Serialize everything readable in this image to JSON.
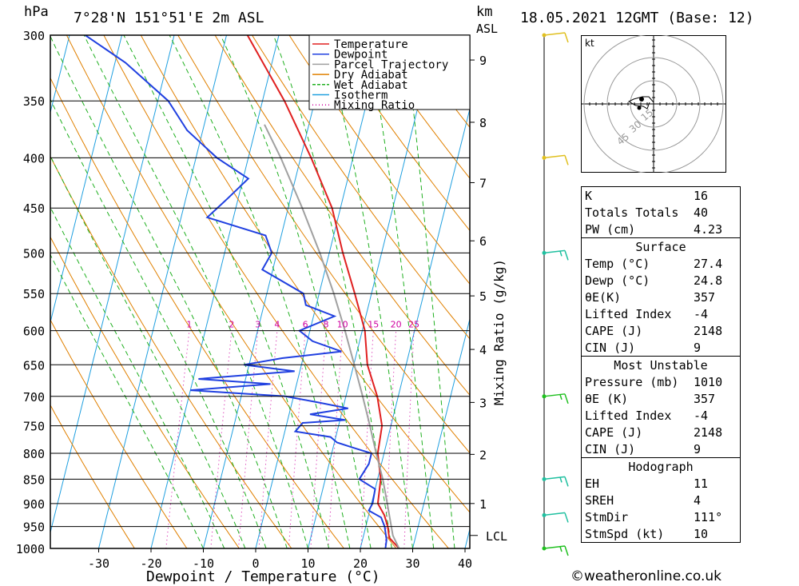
{
  "header": {
    "hpa_label": "hPa",
    "location": "7°28'N  151°51'E  2m  ASL",
    "km_label": "km",
    "asl_label": "ASL",
    "datetime": "18.05.2021  12GMT  (Base: 12)"
  },
  "chart_data": {
    "type": "line",
    "subtype": "skew-T log-P diagram",
    "xlabel": "Dewpoint / Temperature (°C)",
    "ylabel_left": "hPa",
    "ylabel_right": "Mixing Ratio (g/kg)",
    "x_ticks": [
      -30,
      -20,
      -10,
      0,
      10,
      20,
      30,
      40
    ],
    "pressure_levels": [
      300,
      350,
      400,
      450,
      500,
      550,
      600,
      650,
      700,
      750,
      800,
      850,
      900,
      950,
      1000
    ],
    "height_km_ticks": [
      {
        "label": "1",
        "p": 900
      },
      {
        "label": "2",
        "p": 802
      },
      {
        "label": "3",
        "p": 710
      },
      {
        "label": "4",
        "p": 627
      },
      {
        "label": "5",
        "p": 553
      },
      {
        "label": "6",
        "p": 486
      },
      {
        "label": "7",
        "p": 424
      },
      {
        "label": "8",
        "p": 368
      },
      {
        "label": "9",
        "p": 318
      }
    ],
    "lcl": {
      "label": "LCL",
      "p": 970
    },
    "mixing_ratio_labels": [
      "1",
      "2",
      "3",
      "4",
      "6",
      "8",
      "10",
      "15",
      "20",
      "25"
    ],
    "mixing_ratio_values": [
      1,
      2,
      3,
      4,
      6,
      8,
      10,
      15,
      20,
      25
    ],
    "legend": [
      {
        "name": "Temperature",
        "color": "#e02020",
        "dash": "solid"
      },
      {
        "name": "Dewpoint",
        "color": "#2040e0",
        "dash": "solid"
      },
      {
        "name": "Parcel Trajectory",
        "color": "#a0a0a0",
        "dash": "solid"
      },
      {
        "name": "Dry Adiabat",
        "color": "#e08000",
        "dash": "solid"
      },
      {
        "name": "Wet Adiabat",
        "color": "#20b020",
        "dash": "dashed"
      },
      {
        "name": "Isotherm",
        "color": "#20a0e0",
        "dash": "solid"
      },
      {
        "name": "Mixing Ratio",
        "color": "#d000a0",
        "dash": "dotted"
      }
    ],
    "series": [
      {
        "name": "Temperature",
        "points": [
          [
            1000,
            27.4
          ],
          [
            975,
            25
          ],
          [
            950,
            24.2
          ],
          [
            925,
            23
          ],
          [
            900,
            21.2
          ],
          [
            850,
            20.6
          ],
          [
            800,
            18.8
          ],
          [
            750,
            18.3
          ],
          [
            700,
            16
          ],
          [
            650,
            12.6
          ],
          [
            600,
            10.5
          ],
          [
            550,
            6.8
          ],
          [
            500,
            2.6
          ],
          [
            450,
            -1.6
          ],
          [
            400,
            -8
          ],
          [
            350,
            -15.8
          ],
          [
            300,
            -26
          ]
        ]
      },
      {
        "name": "Dewpoint",
        "points": [
          [
            1000,
            24.8
          ],
          [
            980,
            24.6
          ],
          [
            950,
            23.6
          ],
          [
            930,
            22.5
          ],
          [
            915,
            19.8
          ],
          [
            900,
            20.2
          ],
          [
            870,
            20
          ],
          [
            850,
            16.5
          ],
          [
            820,
            17.6
          ],
          [
            800,
            17.6
          ],
          [
            790,
            14
          ],
          [
            780,
            10.5
          ],
          [
            770,
            9
          ],
          [
            760,
            2
          ],
          [
            745,
            3
          ],
          [
            740,
            11
          ],
          [
            730,
            4
          ],
          [
            720,
            11
          ],
          [
            710,
            5
          ],
          [
            700,
            -1.5
          ],
          [
            690,
            -20
          ],
          [
            680,
            -5
          ],
          [
            672,
            -19
          ],
          [
            660,
            -1
          ],
          [
            650,
            -11
          ],
          [
            640,
            -4
          ],
          [
            630,
            7
          ],
          [
            615,
            1
          ],
          [
            600,
            -2
          ],
          [
            580,
            4
          ],
          [
            565,
            -2
          ],
          [
            550,
            -3
          ],
          [
            520,
            -12
          ],
          [
            500,
            -11
          ],
          [
            480,
            -13
          ],
          [
            460,
            -25
          ],
          [
            440,
            -22
          ],
          [
            420,
            -19
          ],
          [
            400,
            -26
          ],
          [
            375,
            -33
          ],
          [
            350,
            -38
          ],
          [
            320,
            -48
          ],
          [
            300,
            -57
          ]
        ]
      },
      {
        "name": "Parcel Trajectory",
        "points": [
          [
            1000,
            27.4
          ],
          [
            970,
            25.6
          ],
          [
            900,
            23
          ],
          [
            850,
            21
          ],
          [
            800,
            18.5
          ],
          [
            750,
            16
          ],
          [
            700,
            13.2
          ],
          [
            650,
            10.1
          ],
          [
            600,
            6.7
          ],
          [
            550,
            2.8
          ],
          [
            500,
            -1.8
          ],
          [
            450,
            -7.3
          ],
          [
            400,
            -13.8
          ],
          [
            370,
            -18.5
          ]
        ]
      }
    ],
    "wind_barbs": [
      {
        "p": 300,
        "color": "#e0c020",
        "speed_kt": 10
      },
      {
        "p": 400,
        "color": "#e0c020",
        "speed_kt": 10
      },
      {
        "p": 500,
        "color": "#20c0a0",
        "speed_kt": 15
      },
      {
        "p": 700,
        "color": "#20c020",
        "speed_kt": 15
      },
      {
        "p": 850,
        "color": "#20c0a0",
        "speed_kt": 15
      },
      {
        "p": 925,
        "color": "#20c0a0",
        "speed_kt": 10
      },
      {
        "p": 1000,
        "color": "#20c020",
        "speed_kt": 15
      }
    ]
  },
  "hodograph": {
    "unit_label": "kt",
    "ring_labels": [
      "15",
      "30",
      "45"
    ],
    "trace": [
      [
        0.0,
        -0.2
      ],
      [
        -0.6,
        -0.9
      ],
      [
        -1.4,
        -0.9
      ],
      [
        -2.5,
        -0.6
      ],
      [
        -3.1,
        -0.3
      ],
      [
        -2.2,
        0.2
      ],
      [
        -1.3,
        0.3
      ],
      [
        -0.8,
        0.6
      ],
      [
        -0.5,
        -0.2
      ]
    ]
  },
  "indices": {
    "K_label": "K",
    "K": "16",
    "TT_label": "Totals Totals",
    "TT": "40",
    "PW_label": "PW (cm)",
    "PW": "4.23",
    "surface": {
      "title": "Surface",
      "temp_label": "Temp (°C)",
      "temp": "27.4",
      "dewp_label": "Dewp (°C)",
      "dewp": "24.8",
      "thetae_label": "θE(K)",
      "thetae": "357",
      "li_label": "Lifted Index",
      "li": "-4",
      "cape_label": "CAPE (J)",
      "cape": "2148",
      "cin_label": "CIN (J)",
      "cin": "9"
    },
    "most_unstable": {
      "title": "Most Unstable",
      "pressure_label": "Pressure (mb)",
      "pressure": "1010",
      "thetae_label": "θE (K)",
      "thetae": "357",
      "li_label": "Lifted Index",
      "li": "-4",
      "cape_label": "CAPE (J)",
      "cape": "2148",
      "cin_label": "CIN (J)",
      "cin": "9"
    },
    "hodograph": {
      "title": "Hodograph",
      "eh_label": "EH",
      "eh": "11",
      "sreh_label": "SREH",
      "sreh": "4",
      "stmdir_label": "StmDir",
      "stmdir": "111°",
      "stmspd_label": "StmSpd (kt)",
      "stmspd": "10"
    }
  },
  "copyright": "©weatheronline.co.uk"
}
